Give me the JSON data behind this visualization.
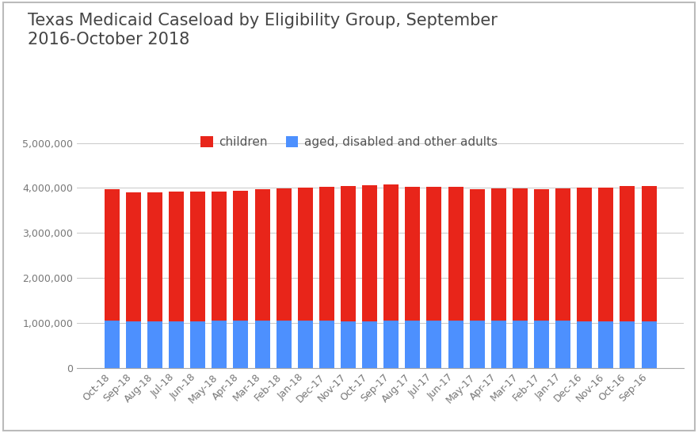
{
  "title": "Texas Medicaid Caseload by Eligibility Group, September\n2016-October 2018",
  "categories": [
    "Oct-18",
    "Sep-18",
    "Aug-18",
    "Jul-18",
    "Jun-18",
    "May-18",
    "Apr-18",
    "Mar-18",
    "Feb-18",
    "Jan-18",
    "Dec-17",
    "Nov-17",
    "Oct-17",
    "Sep-17",
    "Aug-17",
    "Jul-17",
    "Jun-17",
    "May-17",
    "Apr-17",
    "Mar-17",
    "Feb-17",
    "Jan-17",
    "Dec-16",
    "Nov-16",
    "Oct-16",
    "Sep-16"
  ],
  "children": [
    2930000,
    2870000,
    2870000,
    2870000,
    2870000,
    2870000,
    2880000,
    2930000,
    2940000,
    2960000,
    2980000,
    3010000,
    3020000,
    3020000,
    2970000,
    2970000,
    2960000,
    2920000,
    2930000,
    2930000,
    2930000,
    2940000,
    2960000,
    2970000,
    3000000,
    3000000
  ],
  "adults": [
    1050000,
    1040000,
    1040000,
    1045000,
    1045000,
    1050000,
    1050000,
    1050000,
    1050000,
    1050000,
    1050000,
    1040000,
    1040000,
    1050000,
    1050000,
    1060000,
    1060000,
    1060000,
    1055000,
    1055000,
    1050000,
    1050000,
    1045000,
    1045000,
    1040000,
    1040000
  ],
  "children_color": "#e8251a",
  "adults_color": "#4d90fe",
  "background_color": "#ffffff",
  "border_color": "#bbbbbb",
  "ylim": [
    0,
    5000000
  ],
  "yticks": [
    0,
    1000000,
    2000000,
    3000000,
    4000000,
    5000000
  ],
  "grid_color": "#cccccc",
  "legend_labels": [
    "children",
    "aged, disabled and other adults"
  ],
  "title_fontsize": 15,
  "tick_fontsize": 9,
  "legend_fontsize": 11
}
